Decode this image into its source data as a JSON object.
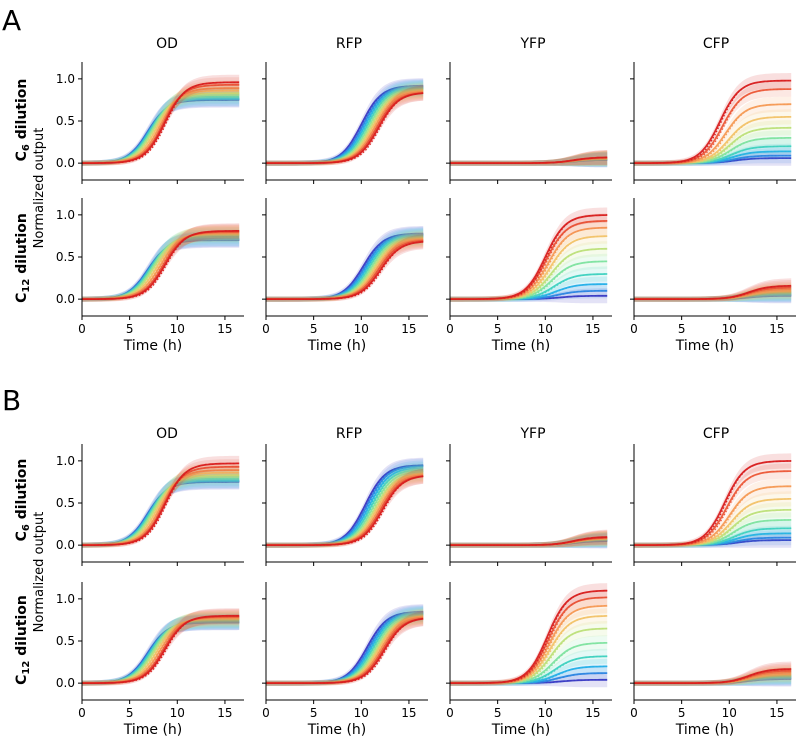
{
  "figure": {
    "sections": [
      {
        "letter": "A",
        "columns": [
          "OD",
          "RFP",
          "YFP",
          "CFP"
        ]
      },
      {
        "letter": "B",
        "columns": [
          "OD",
          "RFP",
          "YFP",
          "CFP"
        ]
      }
    ],
    "row_labels": [
      {
        "main": "C",
        "sub": "6",
        "rest": " dilution"
      },
      {
        "main": "C",
        "sub": "12",
        "rest": " dilution"
      }
    ],
    "ylabel": "Normalized output",
    "xlabel": "Time (h)"
  },
  "chart_data": {
    "type": "line",
    "xlabel": "Time (h)",
    "ylabel": "Normalized output",
    "xlim": [
      0,
      17
    ],
    "ylim": [
      -0.2,
      1.2
    ],
    "x_ticks": [
      0,
      5,
      10,
      15
    ],
    "y_ticks": [
      0.0,
      0.5,
      1.0
    ],
    "y_tick_labels": [
      "0.0",
      "0.5",
      "1.0"
    ],
    "series_colors": [
      "#3b2fbf",
      "#2f7fe0",
      "#25b0e8",
      "#3fd1c0",
      "#7fe3a0",
      "#bde07a",
      "#f2c36a",
      "#f59a55",
      "#ec5a3a",
      "#d81f1f"
    ],
    "panels": [
      {
        "section": "A",
        "row": "C6 dilution",
        "channel": "OD",
        "type": "sigmoid",
        "midpoints": [
          6.9,
          7.0,
          7.1,
          7.2,
          7.4,
          7.6,
          7.9,
          8.2,
          8.5,
          8.7
        ],
        "plateaus": [
          0.75,
          0.76,
          0.77,
          0.79,
          0.81,
          0.83,
          0.86,
          0.89,
          0.93,
          0.96
        ]
      },
      {
        "section": "A",
        "row": "C6 dilution",
        "channel": "RFP",
        "type": "sigmoid",
        "midpoints": [
          10.0,
          10.2,
          10.4,
          10.6,
          10.8,
          11.0,
          11.2,
          11.4,
          11.6,
          11.8
        ],
        "plateaus": [
          0.92,
          0.91,
          0.9,
          0.89,
          0.88,
          0.87,
          0.86,
          0.85,
          0.84,
          0.84
        ]
      },
      {
        "section": "A",
        "row": "C6 dilution",
        "channel": "YFP",
        "type": "sigmoid",
        "midpoints": [
          13,
          13,
          13,
          13,
          13,
          13,
          13,
          13,
          13,
          13
        ],
        "plateaus": [
          0.04,
          0.04,
          0.05,
          0.05,
          0.05,
          0.06,
          0.06,
          0.06,
          0.07,
          0.07
        ]
      },
      {
        "section": "A",
        "row": "C6 dilution",
        "channel": "CFP",
        "type": "sigmoid",
        "midpoints": [
          10.5,
          10.4,
          10.3,
          10.2,
          10.1,
          10.0,
          9.9,
          9.6,
          9.3,
          9.0
        ],
        "plateaus": [
          0.06,
          0.09,
          0.14,
          0.2,
          0.3,
          0.42,
          0.55,
          0.7,
          0.88,
          0.98
        ]
      },
      {
        "section": "A",
        "row": "C12 dilution",
        "channel": "OD",
        "type": "sigmoid",
        "midpoints": [
          6.9,
          7.0,
          7.1,
          7.2,
          7.4,
          7.6,
          7.9,
          8.2,
          8.5,
          8.7
        ],
        "plateaus": [
          0.7,
          0.71,
          0.72,
          0.74,
          0.76,
          0.77,
          0.78,
          0.79,
          0.8,
          0.81
        ]
      },
      {
        "section": "A",
        "row": "C12 dilution",
        "channel": "RFP",
        "type": "sigmoid",
        "midpoints": [
          10.2,
          10.4,
          10.6,
          10.8,
          11.0,
          11.2,
          11.4,
          11.6,
          11.8,
          12.0
        ],
        "plateaus": [
          0.78,
          0.77,
          0.76,
          0.75,
          0.74,
          0.73,
          0.72,
          0.71,
          0.7,
          0.69
        ]
      },
      {
        "section": "A",
        "row": "C12 dilution",
        "channel": "YFP",
        "type": "sigmoid",
        "midpoints": [
          11.5,
          11.3,
          11.1,
          10.9,
          10.7,
          10.6,
          10.5,
          10.3,
          10.1,
          10.0
        ],
        "plateaus": [
          0.04,
          0.1,
          0.18,
          0.3,
          0.45,
          0.6,
          0.75,
          0.85,
          0.93,
          1.0
        ]
      },
      {
        "section": "A",
        "row": "C12 dilution",
        "channel": "CFP",
        "type": "sigmoid",
        "midpoints": [
          12,
          12,
          12,
          12,
          12,
          12,
          12,
          12,
          12,
          12
        ],
        "plateaus": [
          0.04,
          0.05,
          0.06,
          0.07,
          0.08,
          0.09,
          0.1,
          0.12,
          0.14,
          0.16
        ]
      },
      {
        "section": "B",
        "row": "C6 dilution",
        "channel": "OD",
        "type": "sigmoid",
        "midpoints": [
          6.9,
          7.0,
          7.1,
          7.2,
          7.4,
          7.6,
          7.9,
          8.2,
          8.5,
          8.7
        ],
        "plateaus": [
          0.75,
          0.76,
          0.77,
          0.79,
          0.81,
          0.83,
          0.86,
          0.89,
          0.93,
          0.97
        ]
      },
      {
        "section": "B",
        "row": "C6 dilution",
        "channel": "RFP",
        "type": "sigmoid",
        "midpoints": [
          10.4,
          10.6,
          10.8,
          11.0,
          11.2,
          11.4,
          11.6,
          11.8,
          12.0,
          12.2
        ],
        "plateaus": [
          0.95,
          0.94,
          0.92,
          0.9,
          0.88,
          0.86,
          0.85,
          0.84,
          0.83,
          0.83
        ]
      },
      {
        "section": "B",
        "row": "C6 dilution",
        "channel": "YFP",
        "type": "sigmoid",
        "midpoints": [
          13,
          13,
          13,
          13,
          13,
          13,
          13,
          13,
          13,
          13
        ],
        "plateaus": [
          0.05,
          0.06,
          0.06,
          0.07,
          0.07,
          0.08,
          0.08,
          0.09,
          0.09,
          0.1
        ]
      },
      {
        "section": "B",
        "row": "C6 dilution",
        "channel": "CFP",
        "type": "sigmoid",
        "midpoints": [
          10.8,
          10.7,
          10.6,
          10.5,
          10.4,
          10.3,
          10.2,
          10.0,
          9.7,
          9.5
        ],
        "plateaus": [
          0.06,
          0.09,
          0.14,
          0.2,
          0.3,
          0.42,
          0.55,
          0.7,
          0.88,
          1.0
        ]
      },
      {
        "section": "B",
        "row": "C12 dilution",
        "channel": "OD",
        "type": "sigmoid",
        "midpoints": [
          6.9,
          7.0,
          7.1,
          7.2,
          7.4,
          7.6,
          7.9,
          8.2,
          8.5,
          8.7
        ],
        "plateaus": [
          0.72,
          0.72,
          0.73,
          0.74,
          0.75,
          0.76,
          0.77,
          0.78,
          0.79,
          0.8
        ]
      },
      {
        "section": "B",
        "row": "C12 dilution",
        "channel": "RFP",
        "type": "sigmoid",
        "midpoints": [
          10.6,
          10.8,
          11.0,
          11.2,
          11.4,
          11.6,
          11.8,
          12.0,
          12.2,
          12.4
        ],
        "plateaus": [
          0.85,
          0.84,
          0.83,
          0.82,
          0.81,
          0.8,
          0.8,
          0.79,
          0.78,
          0.78
        ]
      },
      {
        "section": "B",
        "row": "C12 dilution",
        "channel": "YFP",
        "type": "sigmoid",
        "midpoints": [
          11.6,
          11.4,
          11.2,
          11.0,
          10.8,
          10.6,
          10.5,
          10.4,
          10.3,
          10.2
        ],
        "plateaus": [
          0.04,
          0.12,
          0.2,
          0.32,
          0.48,
          0.65,
          0.8,
          0.92,
          1.02,
          1.1
        ]
      },
      {
        "section": "B",
        "row": "C12 dilution",
        "channel": "CFP",
        "type": "sigmoid",
        "midpoints": [
          12,
          12,
          12,
          12,
          12,
          12,
          12,
          12,
          12,
          12
        ],
        "plateaus": [
          0.05,
          0.06,
          0.07,
          0.08,
          0.09,
          0.1,
          0.11,
          0.13,
          0.15,
          0.17
        ]
      }
    ]
  }
}
